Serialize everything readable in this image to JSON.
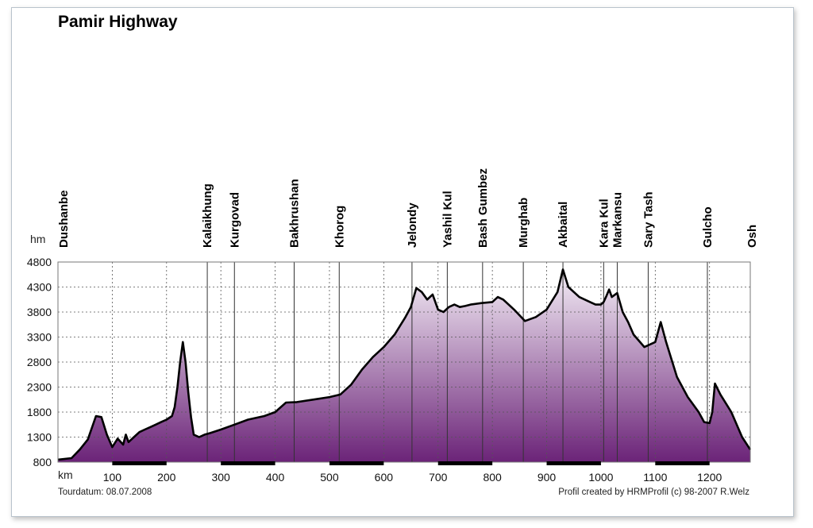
{
  "chart_data": {
    "type": "area",
    "title": "Pamir Highway",
    "ylabel": "hm",
    "xlabel": "km",
    "xlim": [
      0,
      1275
    ],
    "ylim": [
      800,
      4800
    ],
    "grid": true,
    "x_ticks": [
      100,
      200,
      300,
      400,
      500,
      600,
      700,
      800,
      900,
      1000,
      1100,
      1200
    ],
    "y_ticks": [
      800,
      1300,
      1800,
      2300,
      2800,
      3300,
      3800,
      4300,
      4800
    ],
    "colors": {
      "fill_top": "#f4eef6",
      "fill_bottom": "#6b2378",
      "line": "#000000",
      "scale_bar": "#000000"
    },
    "places": [
      {
        "name": "Dushanbe",
        "km": 0
      },
      {
        "name": "Kalaikhung",
        "km": 275
      },
      {
        "name": "Kurgovad",
        "km": 325
      },
      {
        "name": "Bakhrushan",
        "km": 435
      },
      {
        "name": "Khorog",
        "km": 518
      },
      {
        "name": "Jelondy",
        "km": 652
      },
      {
        "name": "Yashil Kul",
        "km": 717
      },
      {
        "name": "Bash Gumbez",
        "km": 782
      },
      {
        "name": "Murghab",
        "km": 857
      },
      {
        "name": "Akbaital",
        "km": 930
      },
      {
        "name": "Kara Kul",
        "km": 1005
      },
      {
        "name": "Markansu",
        "km": 1030
      },
      {
        "name": "Sary Tash",
        "km": 1087
      },
      {
        "name": "Gulcho",
        "km": 1196
      },
      {
        "name": "Osh",
        "km": 1275
      }
    ],
    "series": [
      {
        "x": [
          0,
          25,
          40,
          55,
          70,
          80,
          90,
          100,
          110,
          120,
          125,
          130,
          140,
          150,
          160,
          170,
          180,
          190,
          200,
          210,
          215,
          220,
          225,
          230,
          235,
          240,
          245,
          250,
          260,
          270,
          280,
          300,
          325,
          350,
          380,
          400,
          420,
          440,
          470,
          500,
          520,
          540,
          560,
          580,
          600,
          620,
          640,
          650,
          660,
          670,
          680,
          690,
          700,
          710,
          720,
          730,
          740,
          750,
          760,
          780,
          800,
          810,
          820,
          840,
          860,
          880,
          900,
          920,
          930,
          940,
          960,
          980,
          990,
          1000,
          1005,
          1010,
          1015,
          1020,
          1030,
          1040,
          1050,
          1060,
          1080,
          1100,
          1110,
          1120,
          1140,
          1160,
          1180,
          1190,
          1200,
          1205,
          1210,
          1220,
          1240,
          1260,
          1275
        ],
        "values": [
          850,
          880,
          1050,
          1250,
          1720,
          1700,
          1350,
          1100,
          1270,
          1150,
          1350,
          1200,
          1300,
          1400,
          1450,
          1500,
          1550,
          1600,
          1650,
          1720,
          1900,
          2300,
          2800,
          3200,
          2800,
          2200,
          1700,
          1350,
          1300,
          1350,
          1380,
          1450,
          1550,
          1650,
          1720,
          1800,
          1990,
          2000,
          2050,
          2100,
          2150,
          2350,
          2650,
          2900,
          3100,
          3350,
          3700,
          3900,
          4280,
          4200,
          4050,
          4150,
          3850,
          3800,
          3900,
          3950,
          3900,
          3920,
          3950,
          3980,
          4000,
          4100,
          4050,
          3850,
          3620,
          3700,
          3850,
          4200,
          4650,
          4300,
          4100,
          4000,
          3950,
          3950,
          4000,
          4120,
          4250,
          4100,
          4180,
          3800,
          3600,
          3350,
          3100,
          3200,
          3600,
          3200,
          2500,
          2100,
          1800,
          1600,
          1580,
          1800,
          2370,
          2150,
          1800,
          1300,
          1050
        ]
      }
    ]
  },
  "footer": {
    "date_label": "Tourdatum: 08.07.2008",
    "credit": "Profil created by HRMProfil (c) 98-2007 R.Welz"
  }
}
